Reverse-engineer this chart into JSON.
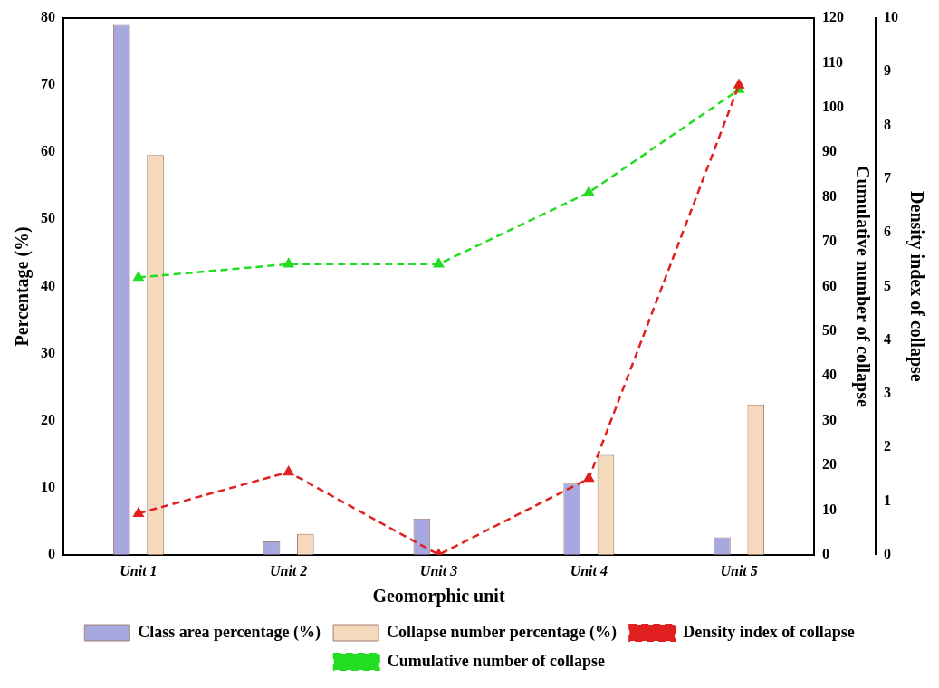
{
  "chart_data": {
    "type": "bar",
    "xlabel": "Geomorphic unit",
    "ylabel": "Percentage (%)",
    "y2label": "Cumulative number of collapse",
    "y3label": "Density index of collapse",
    "categories": [
      "Unit 1",
      "Unit 2",
      "Unit 3",
      "Unit 4",
      "Unit 5"
    ],
    "series": [
      {
        "name": "Class area percentage (%)",
        "color": "#a8a8e0",
        "values": [
          79,
          2,
          5.4,
          10.6,
          2.6
        ]
      },
      {
        "name": "Collapse number percentage (%)",
        "color": "#f5d9bd",
        "values": [
          59.6,
          3.1,
          0,
          14.9,
          22.4
        ]
      },
      {
        "name": "Density index of collapse",
        "type": "line",
        "axis": "y3",
        "color": "#e02020",
        "marker": "triangle",
        "line_style": "dashed",
        "values": [
          0.77,
          1.54,
          0,
          1.42,
          8.75
        ]
      },
      {
        "name": "Cumulative number of collapse",
        "type": "line",
        "axis": "y2",
        "color": "#22dd22",
        "marker": "triangle",
        "line_style": "dashed",
        "values": [
          62,
          65,
          65,
          81,
          104
        ]
      }
    ],
    "ylim": [
      0,
      80
    ],
    "yticks": [
      0,
      10,
      20,
      30,
      40,
      50,
      60,
      70,
      80
    ],
    "y2lim": [
      0,
      120
    ],
    "y2ticks": [
      0,
      10,
      20,
      30,
      40,
      50,
      60,
      70,
      80,
      90,
      100,
      110,
      120
    ],
    "y3lim": [
      0,
      10
    ],
    "y3ticks": [
      0,
      1,
      2,
      3,
      4,
      5,
      6,
      7,
      8,
      9,
      10
    ],
    "grid": false,
    "legend": "bottom"
  }
}
